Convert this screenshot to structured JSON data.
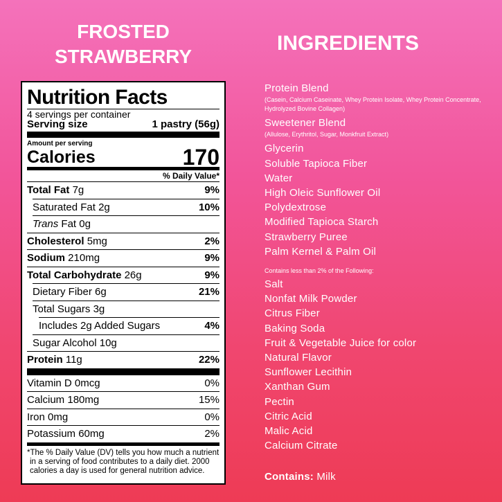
{
  "title": {
    "line1": "FROSTED",
    "line2": "STRAWBERRY"
  },
  "nutrition_facts": {
    "heading": "Nutrition Facts",
    "servings": "4 servings per container",
    "serving_size_label": "Serving size",
    "serving_size": "1 pastry (56g)",
    "amount_per_serving": "Amount per serving",
    "calories_label": "Calories",
    "calories": 170,
    "dv_header": "% Daily Value*",
    "rows": [
      {
        "name": "Total Fat",
        "amount": "7g",
        "dv": "9%"
      },
      {
        "name": "Saturated Fat",
        "amount": "2g",
        "dv": "10%"
      },
      {
        "prefix": "Trans",
        "name": "Fat",
        "amount": "0g"
      },
      {
        "name": "Cholesterol",
        "amount": "5mg",
        "dv": "2%"
      },
      {
        "name": "Sodium",
        "amount": "210mg",
        "dv": "9%"
      },
      {
        "name": "Total Carbohydrate",
        "amount": "26g",
        "dv": "9%"
      },
      {
        "name": "Dietary Fiber",
        "amount": "6g",
        "dv": "21%"
      },
      {
        "name": "Total Sugars",
        "amount": "3g"
      },
      {
        "name": "Includes 2g Added Sugars",
        "dv": "4%"
      },
      {
        "name": "Sugar Alcohol",
        "amount": "10g"
      },
      {
        "name": "Protein",
        "amount": "11g",
        "dv": "22%"
      }
    ],
    "vitamins": [
      {
        "name": "Vitamin D",
        "amount": "0mcg",
        "dv": "0%"
      },
      {
        "name": "Calcium",
        "amount": "180mg",
        "dv": "15%"
      },
      {
        "name": "Iron",
        "amount": "0mg",
        "dv": "0%"
      },
      {
        "name": "Potassium",
        "amount": "60mg",
        "dv": "2%"
      }
    ],
    "footnote": "*The % Daily Value (DV) tells you how much a nutrient in a serving of food contributes to a daily diet. 2000 calories a day is used for general nutrition advice."
  },
  "ingredients": {
    "heading": "INGREDIENTS",
    "items": [
      {
        "name": "Protein Blend",
        "detail": "(Casein, Calcium Caseinate, Whey Protein Isolate, Whey Protein Concentrate, Hydrolyzed Bovine Collagen)"
      },
      {
        "name": "Sweetener Blend",
        "detail": "(Allulose, Erythritol, Sugar, Monkfruit Extract)"
      },
      {
        "name": "Glycerin"
      },
      {
        "name": "Soluble Tapioca Fiber"
      },
      {
        "name": "Water"
      },
      {
        "name": "High Oleic Sunflower Oil"
      },
      {
        "name": "Polydextrose"
      },
      {
        "name": "Modified Tapioca Starch"
      },
      {
        "name": "Strawberry Puree"
      },
      {
        "name": "Palm Kernel & Palm Oil"
      }
    ],
    "note": "Contains less than 2% of the Following:",
    "minor_items": [
      "Salt",
      "Nonfat Milk Powder",
      "Citrus Fiber",
      "Baking Soda",
      "Fruit & Vegetable Juice for color",
      "Natural Flavor",
      "Sunflower Lecithin",
      "Xanthan Gum",
      "Pectin",
      "Citric Acid",
      "Malic Acid",
      "Calcium Citrate"
    ],
    "contains_label": "Contains:",
    "contains": "Milk"
  }
}
